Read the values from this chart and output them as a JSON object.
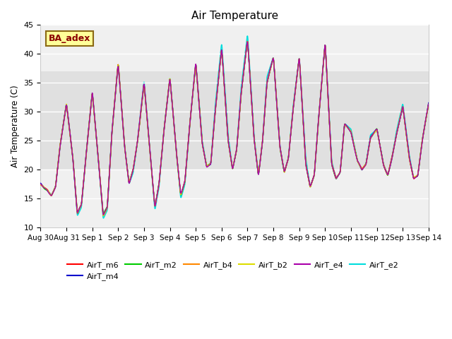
{
  "title": "Air Temperature",
  "ylabel": "Air Temperature (C)",
  "xlabel": "",
  "ylim": [
    10,
    45
  ],
  "yticks": [
    10,
    15,
    20,
    25,
    30,
    35,
    40,
    45
  ],
  "date_labels": [
    "Aug 30",
    "Aug 31",
    "Sep 1",
    "Sep 2",
    "Sep 3",
    "Sep 4",
    "Sep 5",
    "Sep 6",
    "Sep 7",
    "Sep 8",
    "Sep 9",
    "Sep 10",
    "Sep 11",
    "Sep 12",
    "Sep 13",
    "Sep 14"
  ],
  "shaded_band": [
    20,
    37
  ],
  "plot_bg_color": "#f0f0f0",
  "shaded_color": "#e0e0e0",
  "grid_color": "#ffffff",
  "ba_adex_text": "BA_adex",
  "ba_adex_text_color": "#8B0000",
  "ba_adex_box_color": "#FFFF99",
  "ba_adex_edge_color": "#8B6914",
  "series": [
    {
      "name": "AirT_m6",
      "color": "#ff0000",
      "lw": 1.0,
      "zorder": 4
    },
    {
      "name": "AirT_m4",
      "color": "#0000cc",
      "lw": 1.0,
      "zorder": 4
    },
    {
      "name": "AirT_m2",
      "color": "#00cc00",
      "lw": 1.0,
      "zorder": 4
    },
    {
      "name": "AirT_b4",
      "color": "#ff8800",
      "lw": 1.0,
      "zorder": 4
    },
    {
      "name": "AirT_b2",
      "color": "#dddd00",
      "lw": 1.0,
      "zorder": 4
    },
    {
      "name": "AirT_e4",
      "color": "#aa00aa",
      "lw": 1.0,
      "zorder": 4
    },
    {
      "name": "AirT_e2",
      "color": "#00dddd",
      "lw": 1.2,
      "zorder": 2
    }
  ],
  "key_x": [
    0.0,
    0.25,
    0.42,
    0.58,
    0.75,
    1.0,
    1.25,
    1.42,
    1.58,
    1.75,
    2.0,
    2.25,
    2.42,
    2.58,
    2.75,
    3.0,
    3.25,
    3.42,
    3.58,
    3.75,
    4.0,
    4.25,
    4.42,
    4.58,
    4.75,
    5.0,
    5.25,
    5.42,
    5.58,
    5.75,
    6.0,
    6.25,
    6.42,
    6.58,
    6.75,
    7.0,
    7.25,
    7.42,
    7.58,
    7.75,
    8.0,
    8.25,
    8.42,
    8.58,
    8.75,
    9.0,
    9.25,
    9.42,
    9.58,
    9.75,
    10.0,
    10.25,
    10.42,
    10.58,
    10.75,
    11.0,
    11.25,
    11.42,
    11.58,
    11.75,
    12.0,
    12.25,
    12.42,
    12.58,
    12.75,
    13.0,
    13.25,
    13.42,
    13.58,
    13.75,
    14.0,
    14.25,
    14.42,
    14.58,
    14.75,
    15.0
  ],
  "key_y_base": [
    17.5,
    16.5,
    15.5,
    17.0,
    24.0,
    31.5,
    22.0,
    12.5,
    14.0,
    22.0,
    33.5,
    21.0,
    12.0,
    13.5,
    26.0,
    38.5,
    24.0,
    17.5,
    20.0,
    25.0,
    35.0,
    22.0,
    13.5,
    17.5,
    26.0,
    36.0,
    23.0,
    15.5,
    18.0,
    27.0,
    38.5,
    24.5,
    20.5,
    21.0,
    30.0,
    41.0,
    25.0,
    20.0,
    23.5,
    33.0,
    42.5,
    25.5,
    19.0,
    25.0,
    35.0,
    39.5,
    24.0,
    19.5,
    22.0,
    30.0,
    39.5,
    21.0,
    17.0,
    19.0,
    29.0,
    42.0,
    21.0,
    18.5,
    19.5,
    28.0,
    26.5,
    21.5,
    20.0,
    21.0,
    25.5,
    27.0,
    21.0,
    19.0,
    22.0,
    26.0,
    31.0,
    22.0,
    18.5,
    19.0,
    25.0,
    31.5
  ],
  "key_y_e2": [
    17.5,
    16.5,
    15.5,
    17.0,
    24.0,
    31.5,
    22.0,
    12.0,
    13.5,
    22.0,
    33.5,
    21.0,
    11.5,
    13.0,
    26.0,
    38.5,
    24.0,
    17.5,
    19.5,
    25.0,
    35.5,
    22.0,
    13.0,
    17.0,
    26.0,
    36.0,
    23.0,
    15.0,
    17.5,
    27.0,
    38.5,
    25.0,
    20.5,
    21.0,
    31.0,
    42.0,
    26.0,
    20.0,
    23.5,
    34.0,
    43.5,
    26.0,
    19.0,
    25.0,
    36.0,
    39.5,
    24.0,
    19.5,
    22.0,
    30.5,
    39.5,
    22.0,
    17.0,
    19.0,
    29.0,
    42.0,
    21.5,
    18.5,
    19.5,
    28.0,
    27.0,
    21.5,
    20.0,
    21.0,
    26.0,
    27.0,
    21.0,
    19.0,
    22.0,
    26.5,
    31.5,
    22.5,
    18.5,
    19.0,
    25.0,
    31.5
  ]
}
